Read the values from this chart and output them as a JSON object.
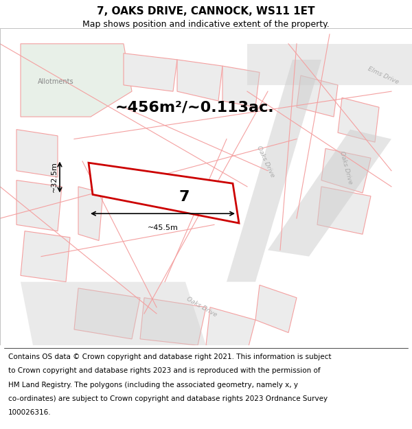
{
  "title": "7, OAKS DRIVE, CANNOCK, WS11 1ET",
  "subtitle": "Map shows position and indicative extent of the property.",
  "title_fontsize": 11,
  "subtitle_fontsize": 9,
  "footer_fontsize": 7.5,
  "map_bg": "#f5f5f5",
  "allotment_color": "#e8f0e8",
  "plot_outline_color": "#cc0000",
  "pink_line_color": "#f4a0a0",
  "gray_road_color": "#cccccc",
  "area_label": "~456m²/~0.113ac.",
  "plot_number": "7",
  "dim_width": "~45.5m",
  "dim_height": "~32.5m",
  "road_label_1": "Oaks Drive",
  "road_label_2": "Oaks Drive",
  "road_label_3": "Oaks Drive",
  "street_label": "Elms Drive",
  "allotment_label": "Allotments",
  "footer_lines": [
    "Contains OS data © Crown copyright and database right 2021. This information is subject",
    "to Crown copyright and database rights 2023 and is reproduced with the permission of",
    "HM Land Registry. The polygons (including the associated geometry, namely x, y",
    "co-ordinates) are subject to Crown copyright and database rights 2023 Ordnance Survey",
    "100026316."
  ],
  "figsize": [
    6.0,
    6.25
  ],
  "dpi": 100
}
